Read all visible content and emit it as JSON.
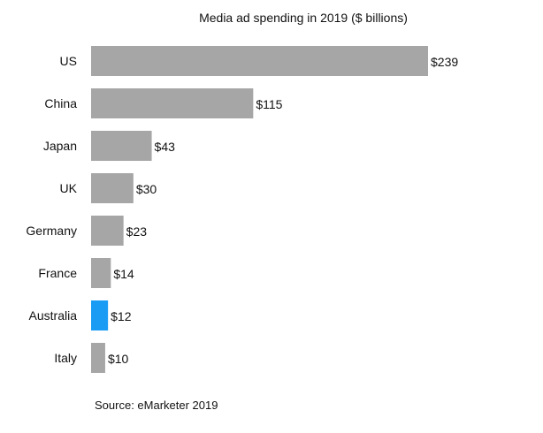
{
  "chart_data": {
    "type": "bar",
    "orientation": "horizontal",
    "title": "Media ad spending in 2019 ($ billions)",
    "categories": [
      "US",
      "China",
      "Japan",
      "UK",
      "Germany",
      "France",
      "Australia",
      "Italy"
    ],
    "values": [
      239,
      115,
      43,
      30,
      23,
      14,
      12,
      10
    ],
    "data_labels": [
      "$239",
      "$115",
      "$43",
      "$30",
      "$23",
      "$14",
      "$12",
      "$10"
    ],
    "xlabel": "",
    "ylabel": "",
    "xlim": [
      0,
      239
    ],
    "grid": false,
    "colors": {
      "default": "#a6a6a6",
      "highlight": "#1a9cf5"
    },
    "highlight_category": "Australia",
    "source": "Source: eMarketer 2019"
  }
}
